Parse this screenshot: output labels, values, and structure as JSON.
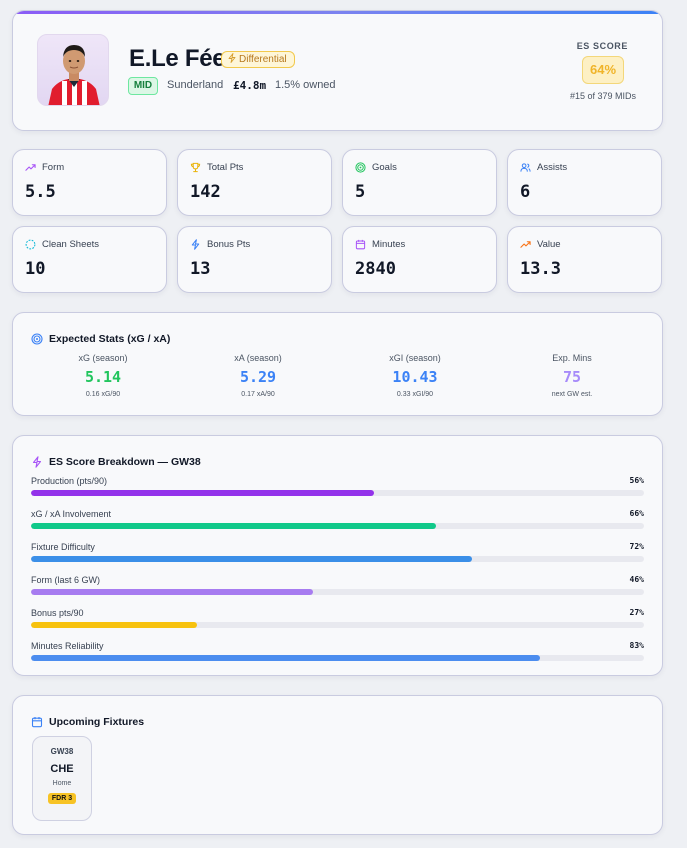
{
  "player": {
    "name": "E.Le Fée",
    "badge": "Differential",
    "position": "MID",
    "club": "Sunderland",
    "price": "£4.8m",
    "owned": "1.5% owned",
    "es_label": "ES SCORE",
    "es_value": "64%",
    "es_rank": "#15 of 379 MIDs"
  },
  "stats": [
    {
      "label": "Form",
      "value": "5.5",
      "icon": "trend-up-icon",
      "color": "#a855f7"
    },
    {
      "label": "Total Pts",
      "value": "142",
      "icon": "trophy-icon",
      "color": "#eab308"
    },
    {
      "label": "Goals",
      "value": "5",
      "icon": "target-icon",
      "color": "#22c55e"
    },
    {
      "label": "Assists",
      "value": "6",
      "icon": "users-icon",
      "color": "#3b82f6"
    },
    {
      "label": "Clean Sheets",
      "value": "10",
      "icon": "shield-icon",
      "color": "#06b6d4"
    },
    {
      "label": "Bonus Pts",
      "value": "13",
      "icon": "zap-icon",
      "color": "#3b82f6"
    },
    {
      "label": "Minutes",
      "value": "2840",
      "icon": "calendar-icon",
      "color": "#a855f7"
    },
    {
      "label": "Value",
      "value": "13.3",
      "icon": "trend-up-icon",
      "color": "#f97316"
    }
  ],
  "expected": {
    "title": "Expected Stats (xG / xA)",
    "columns": [
      {
        "label": "xG (season)",
        "value": "5.14",
        "sub": "0.16 xG/90",
        "color": "#22c55e"
      },
      {
        "label": "xA (season)",
        "value": "5.29",
        "sub": "0.17 xA/90",
        "color": "#3b82f6"
      },
      {
        "label": "xGI (season)",
        "value": "10.43",
        "sub": "0.33 xGI/90",
        "color": "#3b82f6"
      },
      {
        "label": "Exp. Mins",
        "value": "75",
        "sub": "next GW est.",
        "color": "#a78bfa"
      }
    ]
  },
  "breakdown": {
    "title": "ES Score Breakdown — GW38",
    "rows": [
      {
        "label": "Production (pts/90)",
        "pct_text": "56%",
        "pct": 56,
        "color": "#9333ea"
      },
      {
        "label": "xG / xA Involvement",
        "pct_text": "66%",
        "pct": 66,
        "color": "#10c98a"
      },
      {
        "label": "Fixture Difficulty",
        "pct_text": "72%",
        "pct": 72,
        "color": "#3b8fe8"
      },
      {
        "label": "Form (last 6 GW)",
        "pct_text": "46%",
        "pct": 46,
        "color": "#a77cf0"
      },
      {
        "label": "Bonus pts/90",
        "pct_text": "27%",
        "pct": 27,
        "color": "#f7c20e"
      },
      {
        "label": "Minutes Reliability",
        "pct_text": "83%",
        "pct": 83,
        "color": "#4c8def"
      }
    ]
  },
  "fixtures": {
    "title": "Upcoming Fixtures",
    "items": [
      {
        "gw": "GW38",
        "opponent": "CHE",
        "venue": "Home",
        "fdr": "FDR 3"
      }
    ]
  }
}
